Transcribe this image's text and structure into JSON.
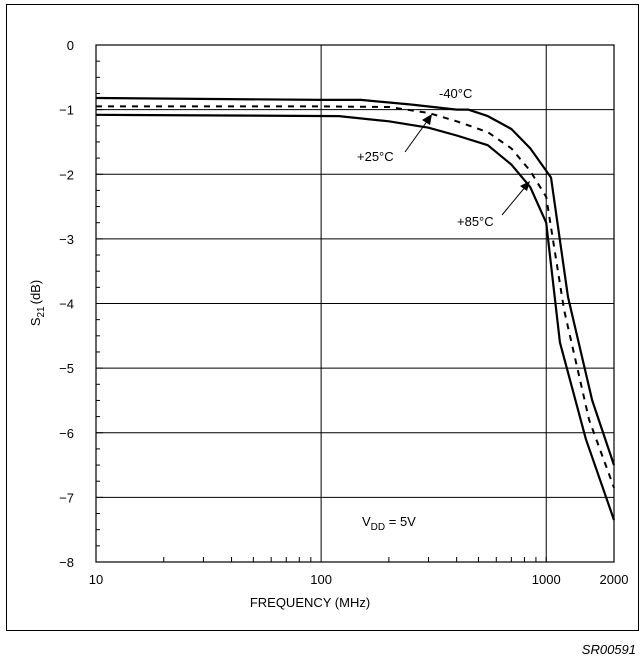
{
  "chart_data": {
    "type": "line",
    "title": "",
    "xlabel": "FREQUENCY (MHz)",
    "ylabel": "S21 (dB)",
    "ylabel_main": "S",
    "ylabel_sub": "21",
    "ylabel_unit": "(dB)",
    "x_scale": "log",
    "xlim": [
      10,
      2000
    ],
    "ylim": [
      -8,
      0
    ],
    "x_tick_labels": [
      "10",
      "100",
      "1000",
      "2000"
    ],
    "y_tick_labels": [
      "0",
      "−1",
      "−2",
      "−3",
      "−4",
      "−5",
      "−6",
      "−7",
      "−8"
    ],
    "grid": true,
    "series": [
      {
        "name": "-40°C",
        "style": "solid",
        "x": [
          10,
          100,
          150,
          250,
          400,
          450,
          550,
          700,
          850,
          1050,
          1250,
          1600,
          2000
        ],
        "y": [
          -0.82,
          -0.85,
          -0.85,
          -0.92,
          -1.0,
          -1.0,
          -1.1,
          -1.3,
          -1.6,
          -2.05,
          -3.9,
          -5.5,
          -6.5
        ]
      },
      {
        "name": "+25°C",
        "style": "dashed",
        "x": [
          10,
          100,
          200,
          300,
          400,
          550,
          700,
          850,
          1000,
          1200,
          1550,
          2000
        ],
        "y": [
          -0.95,
          -0.95,
          -0.96,
          -1.05,
          -1.18,
          -1.35,
          -1.6,
          -1.95,
          -2.35,
          -4.1,
          -5.8,
          -6.85
        ]
      },
      {
        "name": "+85°C",
        "style": "solid",
        "x": [
          10,
          120,
          200,
          300,
          400,
          550,
          700,
          850,
          1000,
          1150,
          1500,
          2000
        ],
        "y": [
          -1.08,
          -1.1,
          -1.18,
          -1.28,
          -1.4,
          -1.55,
          -1.85,
          -2.2,
          -2.75,
          -4.6,
          -6.1,
          -7.35
        ]
      }
    ],
    "annotations": {
      "label_m40": "-40°C",
      "label_p25": "+25°C",
      "label_p85": "+85°C",
      "vdd_main": "V",
      "vdd_sub": "DD",
      "vdd_value": " = 5V"
    }
  },
  "figure_id": "SR00591"
}
